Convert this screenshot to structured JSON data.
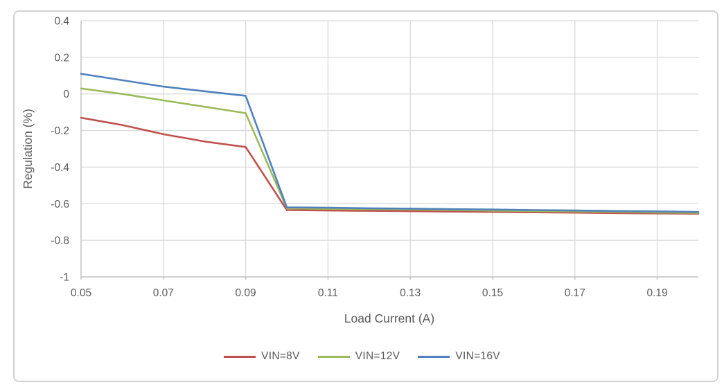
{
  "window": {
    "background": "#ffffff",
    "card_border_color": "#d2d2d2"
  },
  "chart_data": {
    "type": "line",
    "title": "",
    "xlabel": "Load Current (A)",
    "ylabel": "Regulation (%)",
    "xlim": [
      0.05,
      0.2
    ],
    "ylim": [
      -1,
      0.4
    ],
    "grid": true,
    "legend_position": "bottom",
    "x_ticks": [
      0.05,
      0.07,
      0.09,
      0.11,
      0.13,
      0.15,
      0.17,
      0.19
    ],
    "x_tick_labels": [
      "0.05",
      "0.07",
      "0.09",
      "0.11",
      "0.13",
      "0.15",
      "0.17",
      "0.19"
    ],
    "y_ticks": [
      0.4,
      0.2,
      0,
      -0.2,
      -0.4,
      -0.6,
      -0.8,
      -1
    ],
    "y_tick_labels": [
      "0.4",
      "0.2",
      "0",
      "-0.2",
      "-0.4",
      "-0.6",
      "-0.8",
      "-1"
    ],
    "x": [
      0.05,
      0.06,
      0.07,
      0.08,
      0.09,
      0.1,
      0.11,
      0.12,
      0.13,
      0.14,
      0.15,
      0.16,
      0.17,
      0.18,
      0.19,
      0.2
    ],
    "series": [
      {
        "name": "VIN=8V",
        "color": "#c0504d",
        "values": [
          -0.13,
          -0.17,
          -0.22,
          -0.26,
          -0.29,
          -0.635,
          -0.637,
          -0.639,
          -0.641,
          -0.643,
          -0.645,
          -0.647,
          -0.649,
          -0.651,
          -0.653,
          -0.655
        ]
      },
      {
        "name": "VIN=12V",
        "color": "#9bbb59",
        "values": [
          0.03,
          0.0,
          -0.035,
          -0.07,
          -0.105,
          -0.625,
          -0.628,
          -0.63,
          -0.632,
          -0.635,
          -0.638,
          -0.64,
          -0.642,
          -0.645,
          -0.648,
          -0.65
        ]
      },
      {
        "name": "VIN=16V",
        "color": "#4f81bd",
        "values": [
          0.11,
          0.075,
          0.04,
          0.015,
          -0.01,
          -0.62,
          -0.622,
          -0.625,
          -0.627,
          -0.63,
          -0.632,
          -0.635,
          -0.637,
          -0.64,
          -0.642,
          -0.645
        ]
      }
    ],
    "colors": {
      "gridline": "#d9d9d9",
      "axis_line": "#bfbfbf",
      "tick_text": "#595959",
      "axis_title_text": "#595959"
    }
  }
}
